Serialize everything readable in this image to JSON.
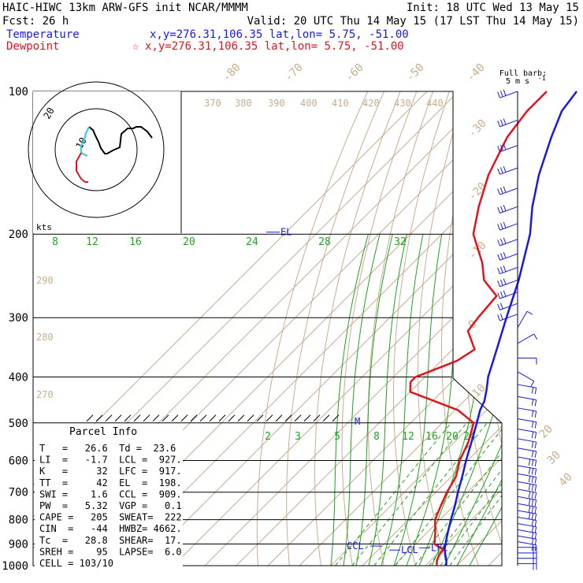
{
  "header": {
    "title": "HAIC-HIWC 13km ARW-GFS init   NCAR/MMMM",
    "init": "Init: 18 UTC Wed 13 May 15",
    "fcst": "Fcst:    26 h",
    "valid": "Valid: 20 UTC Thu 14 May 15 (17 LST Thu 14 May 15)",
    "temperature_label": "Temperature",
    "temperature_loc": "x,y=276.31,106.35   lat,lon=  5.75, -51.00",
    "dewpoint_label": "Dewpoint",
    "dewpoint_loc": "x,y=276.31,106.35   lat,lon=  5.75, -51.00",
    "dewpoint_star": "☆"
  },
  "barb_legend": {
    "line1": "Full barb:",
    "line2": "5 m s",
    "sup": "-1"
  },
  "hodograph": {
    "units": "kts",
    "ring_labels": [
      "20",
      "10"
    ],
    "trace_black": [
      [
        0,
        0
      ],
      [
        -6,
        -8
      ],
      [
        -14,
        -14
      ],
      [
        -20,
        -14
      ],
      [
        -24,
        -12
      ],
      [
        -31,
        -12
      ],
      [
        -39,
        -5
      ],
      [
        -41,
        12
      ],
      [
        -50,
        16
      ],
      [
        -57,
        20
      ],
      [
        -60,
        20
      ],
      [
        -65,
        13
      ],
      [
        -68,
        5
      ],
      [
        -72,
        -3
      ],
      [
        -75,
        -10
      ],
      [
        -80,
        -14
      ]
    ],
    "trace_cyan": [
      [
        -80,
        -14
      ],
      [
        -84,
        -6
      ],
      [
        -86,
        3
      ],
      [
        -90,
        10
      ],
      [
        -90,
        19
      ],
      [
        -82,
        23
      ]
    ],
    "trace_red": [
      [
        -90,
        19
      ],
      [
        -96,
        30
      ],
      [
        -96,
        42
      ],
      [
        -90,
        52
      ],
      [
        -85,
        56
      ],
      [
        -81,
        56
      ]
    ]
  },
  "axes": {
    "pressure_levels": [
      "100",
      "200",
      "300",
      "400",
      "500",
      "600",
      "700",
      "800",
      "900",
      "1000"
    ],
    "pmin": 100,
    "pmax": 1000,
    "temp_ticks_top": [
      "-80",
      "-70",
      "-60",
      "-50",
      "-40"
    ],
    "temp_ticks_right": [
      "-30",
      "-20",
      "-10",
      "0",
      "10",
      "20",
      "30",
      "40"
    ],
    "theta_labels": [
      "370",
      "380",
      "390",
      "400",
      "410",
      "420",
      "430",
      "440",
      "290",
      "280",
      "270"
    ],
    "mixing_labels_upper": [
      "8",
      "12",
      "16",
      "20",
      "24",
      "28",
      "32"
    ],
    "mixing_labels_lower": [
      "2",
      "3",
      "5",
      "8",
      "12",
      "16",
      "20",
      "24"
    ]
  },
  "chart_data": {
    "type": "line",
    "title": "HAIC-HIWC 13km ARW-GFS init",
    "xlabel": "",
    "ylabel": "",
    "y_scale": "log-pressure",
    "ylim": [
      1000,
      100
    ],
    "series": [
      {
        "name": "Temperature",
        "color": "#1a1ad9",
        "p": [
          1000,
          975,
          950,
          925,
          900,
          875,
          850,
          800,
          750,
          700,
          650,
          600,
          550,
          500,
          470,
          450,
          425,
          400,
          350,
          300,
          250,
          200,
          175,
          150,
          125,
          110,
          100
        ],
        "t": [
          26.6,
          25.0,
          23.0,
          21.0,
          19.5,
          18.0,
          16.5,
          13.5,
          10.5,
          7.0,
          3.5,
          -0.5,
          -4.5,
          -9.0,
          -12.0,
          -13.5,
          -16.5,
          -20.0,
          -26.0,
          -33.0,
          -41.0,
          -52.0,
          -60.0,
          -68.0,
          -76.0,
          -81.0,
          -82.5
        ]
      },
      {
        "name": "Dewpoint",
        "color": "#e0141e",
        "p": [
          1000,
          975,
          950,
          925,
          900,
          850,
          800,
          750,
          700,
          650,
          600,
          550,
          500,
          470,
          430,
          410,
          400,
          370,
          350,
          320,
          300,
          270,
          250,
          230,
          200,
          175,
          150,
          125,
          110,
          100
        ],
        "t": [
          23.6,
          22.0,
          21.0,
          20.5,
          16.0,
          12.5,
          8.5,
          6.0,
          3.5,
          1.5,
          -2.5,
          -5.5,
          -10.0,
          -19.0,
          -40.0,
          -43.0,
          -43.0,
          -35.0,
          -33.0,
          -41.0,
          -42.0,
          -43.0,
          -52.0,
          -58.0,
          -70.0,
          -77.0,
          -84.0,
          -90.0,
          -92.0,
          -92.0
        ]
      }
    ],
    "parcel_levels": [
      {
        "label": "EL",
        "p": 198
      },
      {
        "label": "M",
        "p": 495
      },
      {
        "label": "CCL",
        "p": 909
      },
      {
        "label": "LCL",
        "p": 927
      },
      {
        "label": "LFC",
        "p": 917
      }
    ],
    "wind_barbs": {
      "p": [
        100,
        115,
        130,
        145,
        160,
        175,
        190,
        205,
        220,
        235,
        250,
        265,
        280,
        295,
        315,
        340,
        365,
        390,
        415,
        440,
        465,
        490,
        515,
        540,
        565,
        590,
        615,
        640,
        665,
        690,
        715,
        740,
        765,
        790,
        815,
        840,
        865,
        890,
        915,
        940,
        965,
        990
      ],
      "speed_ms": [
        15,
        15,
        15,
        15,
        15,
        15,
        15,
        15,
        15,
        15,
        15,
        15,
        10,
        10,
        5,
        5,
        5,
        5,
        10,
        10,
        10,
        10,
        10,
        10,
        10,
        15,
        15,
        15,
        15,
        15,
        15,
        15,
        15,
        10,
        10,
        10,
        10,
        10,
        10,
        10,
        10,
        10
      ],
      "dir_deg": [
        250,
        250,
        250,
        250,
        250,
        250,
        250,
        250,
        250,
        250,
        250,
        250,
        250,
        250,
        30,
        60,
        90,
        120,
        100,
        100,
        100,
        100,
        100,
        100,
        100,
        100,
        100,
        100,
        100,
        100,
        100,
        100,
        100,
        100,
        100,
        100,
        100,
        100,
        90,
        90,
        90,
        90
      ]
    }
  },
  "parcel_info": {
    "title": "Parcel Info",
    "rows": [
      "T   =   26.6  Td =  23.6",
      "LI  =   -1.7  LCL =  927.",
      "K   =     32  LFC =  917.",
      "TT  =     42  EL  =  198.",
      "SWI =    1.6  CCL =  909.",
      "PW  =   5.32  VGP =   0.1",
      "CAPE =   205  SWEAT=  222",
      "CIN  =   -44  HWBZ= 4662.",
      "Tc  =   28.8  SHEAR=  17.",
      "SREH =    95  LAPSE=  6.0",
      "CELL = 103/10"
    ]
  },
  "level_labels": {
    "el": "EL",
    "m": "M",
    "ccl": "CCL",
    "lcl": "LCL",
    "lfc": "LFC"
  },
  "colors": {
    "temperature": "#1a1ad9",
    "dewpoint": "#e0141e",
    "isotherm": "#c8ad8c",
    "mixing_ratio": "#1fa31f",
    "axis": "#000000"
  }
}
